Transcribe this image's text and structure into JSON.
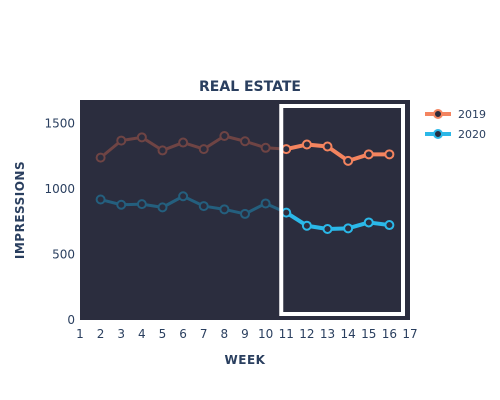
{
  "chart_data": {
    "type": "line",
    "title": "REAL ESTATE",
    "xlabel": "WEEK",
    "ylabel": "IMPRESSIONS",
    "xlim": [
      1,
      17
    ],
    "ylim": [
      0,
      1680
    ],
    "xticks": [
      1,
      2,
      3,
      4,
      5,
      6,
      7,
      8,
      9,
      10,
      11,
      12,
      13,
      14,
      15,
      16,
      17
    ],
    "yticks": [
      0,
      500,
      1000,
      1500
    ],
    "x": [
      2,
      3,
      4,
      5,
      6,
      7,
      8,
      9,
      10,
      11,
      12,
      13,
      14,
      15,
      16
    ],
    "series": [
      {
        "name": "2019",
        "color": "#f4845f",
        "values": [
          1240,
          1370,
          1395,
          1295,
          1355,
          1305,
          1405,
          1365,
          1315,
          1305,
          1340,
          1325,
          1215,
          1265,
          1265
        ]
      },
      {
        "name": "2020",
        "color": "#2bb8e8",
        "values": [
          920,
          880,
          885,
          860,
          945,
          870,
          845,
          810,
          890,
          820,
          720,
          695,
          700,
          745,
          725
        ]
      }
    ],
    "highlight_from_x": 11,
    "plot_background": "#2b2d3e",
    "muted_colors": {
      "2019": "#6f4444",
      "2020": "#245f7e"
    },
    "highlight_box_color": "#ffffff",
    "grid": false,
    "legend_position": "top-right"
  }
}
